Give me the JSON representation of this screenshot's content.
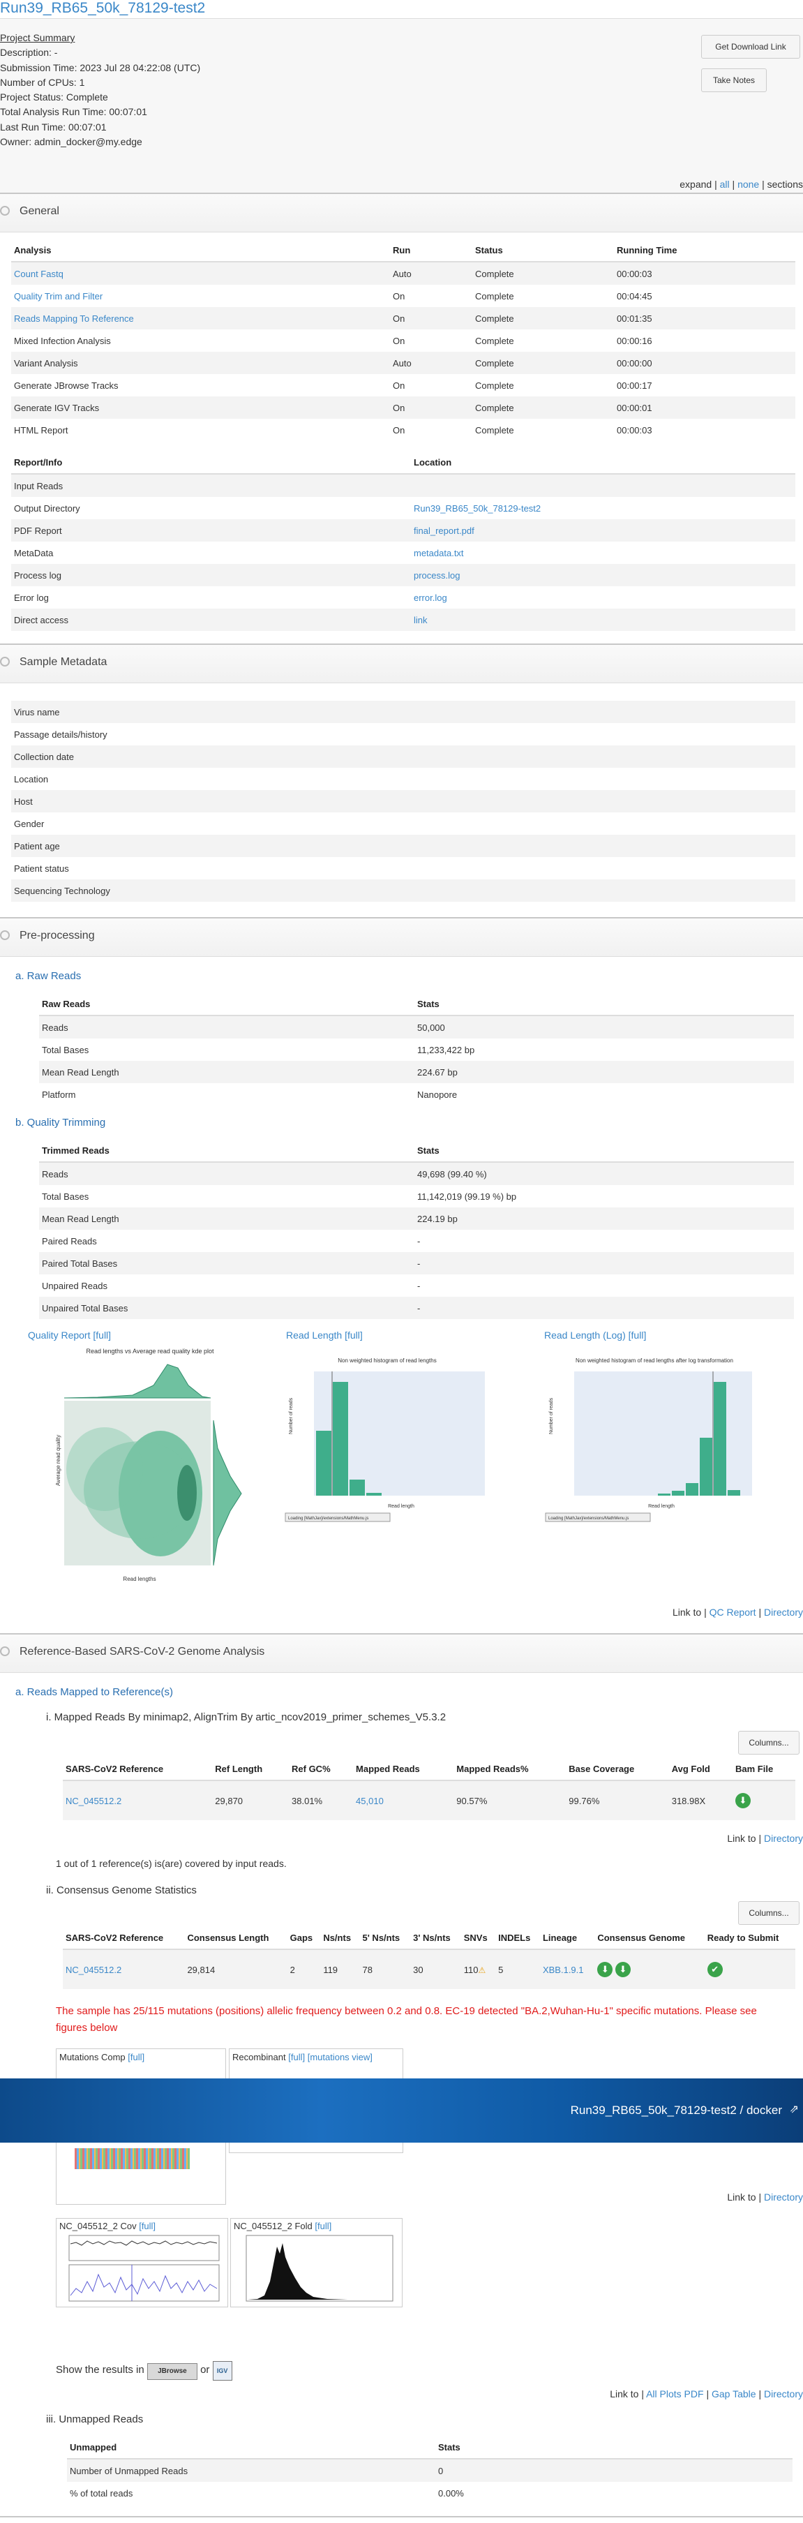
{
  "project": {
    "title": "Run39_RB65_50k_78129-test2",
    "summary_header": "Project Summary",
    "lines": [
      "Description: -",
      "Submission Time: 2023 Jul 28 04:22:08 (UTC)",
      "Number of CPUs: 1",
      "Project Status: Complete",
      "Total Analysis Run Time: 00:07:01",
      "Last Run Time: 00:07:01",
      "Owner: admin_docker@my.edge"
    ],
    "download_btn": "Get Download Link",
    "notes_btn": "Take Notes"
  },
  "expand_bar": {
    "expand": "expand",
    "sep": "|",
    "all": "all",
    "none": "none",
    "sections": "sections"
  },
  "sections": {
    "general": "General",
    "metadata": "Sample Metadata",
    "preproc": "Pre-processing",
    "refbased": "Reference-Based SARS-CoV-2 Genome Analysis"
  },
  "analysis_table": {
    "headers": [
      "Analysis",
      "Run",
      "Status",
      "Running Time"
    ],
    "rows": [
      [
        "Count Fastq",
        "Auto",
        "Complete",
        "00:00:03"
      ],
      [
        "Quality Trim and Filter",
        "On",
        "Complete",
        "00:04:45"
      ],
      [
        "Reads Mapping To Reference",
        "On",
        "Complete",
        "00:01:35"
      ],
      [
        "Mixed Infection Analysis",
        "On",
        "Complete",
        "00:00:16"
      ],
      [
        "Variant Analysis",
        "Auto",
        "Complete",
        "00:00:00"
      ],
      [
        "Generate JBrowse Tracks",
        "On",
        "Complete",
        "00:00:17"
      ],
      [
        "Generate IGV Tracks",
        "On",
        "Complete",
        "00:00:01"
      ],
      [
        "HTML Report",
        "On",
        "Complete",
        "00:00:03"
      ]
    ]
  },
  "report_table": {
    "headers": [
      "Report/Info",
      "Location"
    ],
    "rows": [
      [
        "Input Reads",
        ""
      ],
      [
        "Output Directory",
        "Run39_RB65_50k_78129-test2"
      ],
      [
        "PDF Report",
        "final_report.pdf"
      ],
      [
        "MetaData",
        "metadata.txt"
      ],
      [
        "Process log",
        "process.log"
      ],
      [
        "Error log",
        "error.log"
      ],
      [
        "Direct access",
        "link"
      ]
    ]
  },
  "metadata_rows": [
    "Virus name",
    "Passage details/history",
    "Collection date",
    "Location",
    "Host",
    "Gender",
    "Patient age",
    "Patient status",
    "Sequencing Technology"
  ],
  "raw_reads": {
    "heading": "a. Raw Reads",
    "headers": [
      "Raw Reads",
      "Stats"
    ],
    "rows": [
      [
        "Reads",
        "50,000"
      ],
      [
        "Total Bases",
        "11,233,422 bp"
      ],
      [
        "Mean Read Length",
        "224.67 bp"
      ],
      [
        "Platform",
        "Nanopore"
      ]
    ]
  },
  "trimming": {
    "heading": "b. Quality Trimming",
    "headers": [
      "Trimmed Reads",
      "Stats"
    ],
    "rows": [
      [
        "Reads",
        "49,698 (99.40 %)"
      ],
      [
        "Total Bases",
        "11,142,019 (99.19 %) bp"
      ],
      [
        "Mean Read Length",
        "224.19 bp"
      ],
      [
        "Paired Reads",
        "-"
      ],
      [
        "Paired Total Bases",
        "-"
      ],
      [
        "Unpaired Reads",
        "-"
      ],
      [
        "Unpaired Total Bases",
        "-"
      ]
    ]
  },
  "qc_plots": {
    "p1": {
      "label": "Quality Report",
      "full": "[full]",
      "title": "Read lengths vs Average read quality kde plot",
      "xlabel": "Read lengths",
      "ylabel": "Average read quality"
    },
    "p2": {
      "label": "Read Length",
      "full": "[full]",
      "title": "Non weighted histogram of read lengths",
      "xlabel": "Read length",
      "ylabel": "Number of reads",
      "loading": "Loading [MathJax]/extensions/MathMenu.js"
    },
    "p3": {
      "label": "Read Length (Log)",
      "full": "[full]",
      "title": "Non weighted histogram of read lengths after log transformation",
      "xlabel": "Read length",
      "ylabel": "Number of reads",
      "loading": "Loading [MathJax]/extensions/MathMenu.js"
    },
    "link_to": "Link to |",
    "qc_report": "QC Report",
    "sep": "|",
    "directory": "Directory"
  },
  "mapped": {
    "heading": "a. Reads Mapped to Reference(s)",
    "sub_i": "i. Mapped Reads By minimap2, AlignTrim By artic_ncov2019_primer_schemes_V5.3.2",
    "columns_btn": "Columns...",
    "headers": [
      "SARS-CoV2 Reference",
      "Ref Length",
      "Ref GC%",
      "Mapped Reads",
      "Mapped Reads%",
      "Base Coverage",
      "Avg Fold",
      "Bam File"
    ],
    "row": [
      "NC_045512.2",
      "29,870",
      "38.01%",
      "45,010",
      "90.57%",
      "99.76%",
      "318.98X"
    ],
    "link_to": "Link to |",
    "directory": "Directory",
    "covered": "1 out of 1 reference(s) is(are) covered by input reads."
  },
  "consensus": {
    "heading": "ii. Consensus Genome Statistics",
    "columns_btn": "Columns...",
    "headers": [
      "SARS-CoV2 Reference",
      "Consensus Length",
      "Gaps",
      "Ns/nts",
      "5' Ns/nts",
      "3' Ns/nts",
      "SNVs",
      "INDELs",
      "Lineage",
      "Consensus Genome",
      "Ready to Submit"
    ],
    "row": [
      "NC_045512.2",
      "29,814",
      "2",
      "119",
      "78",
      "30",
      "110",
      "5",
      "XBB.1.9.1"
    ],
    "warning": "The sample has 25/115 mutations (positions) allelic frequency between 0.2 and 0.8. EC-19 detected \"BA.2,Wuhan-Hu-1\" specific mutations. Please see figures below",
    "mut_label": "Mutations Comp",
    "mut_full": "[full]",
    "rec_label": "Recombinant",
    "rec_full": "[full]",
    "rec_view": "[mutations view]",
    "banner": "Run39_RB65_50k_78129-test2 / docker",
    "link_to": "Link to |",
    "directory": "Directory",
    "cov_label": "NC_045512_2 Cov",
    "cov_full": "[full]",
    "fold_label": "NC_045512_2 Fold",
    "fold_full": "[full]",
    "show_results": "Show the results in",
    "or": "or",
    "jbrowse": "JBrowse",
    "igv": "IGV",
    "link_to2": "Link to |",
    "all_plots": "All Plots PDF",
    "sep": "|",
    "gap_table": "Gap Table",
    "directory2": "Directory"
  },
  "unmapped": {
    "heading": "iii. Unmapped Reads",
    "headers": [
      "Unmapped",
      "Stats"
    ],
    "rows": [
      [
        "Number of Unmapped Reads",
        "0"
      ],
      [
        "% of total reads",
        "0.00%"
      ]
    ]
  }
}
